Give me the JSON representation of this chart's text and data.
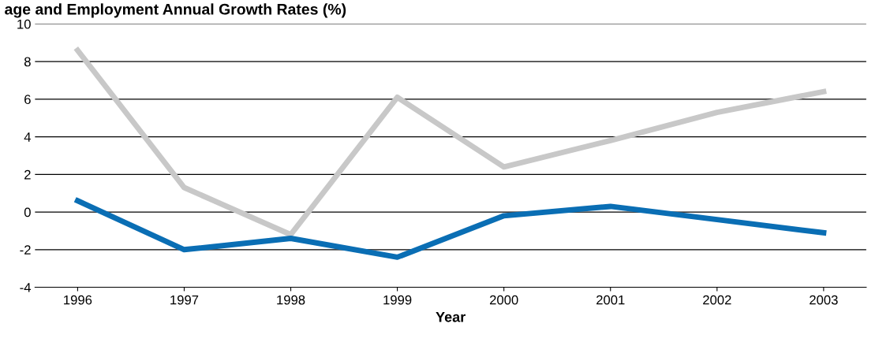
{
  "chart_data": {
    "type": "line",
    "title": "age and Employment Annual Growth Rates (%)",
    "xlabel": "Year",
    "categories": [
      "1996",
      "1997",
      "1998",
      "1999",
      "2000",
      "2001",
      "2002",
      "2003"
    ],
    "series": [
      {
        "color": "#c8c8c8",
        "values": [
          8.6,
          1.3,
          -1.2,
          6.1,
          2.4,
          3.8,
          5.3,
          6.4
        ]
      },
      {
        "color": "#0a6eb4",
        "values": [
          0.6,
          -2.0,
          -1.4,
          -2.4,
          -0.2,
          0.3,
          -0.4,
          -1.1
        ]
      }
    ],
    "ylim": [
      -4,
      10
    ],
    "yticks": [
      -4,
      -2,
      0,
      2,
      4,
      6,
      8,
      10
    ],
    "grid": "y",
    "marker": "none",
    "line_style": "solid"
  }
}
